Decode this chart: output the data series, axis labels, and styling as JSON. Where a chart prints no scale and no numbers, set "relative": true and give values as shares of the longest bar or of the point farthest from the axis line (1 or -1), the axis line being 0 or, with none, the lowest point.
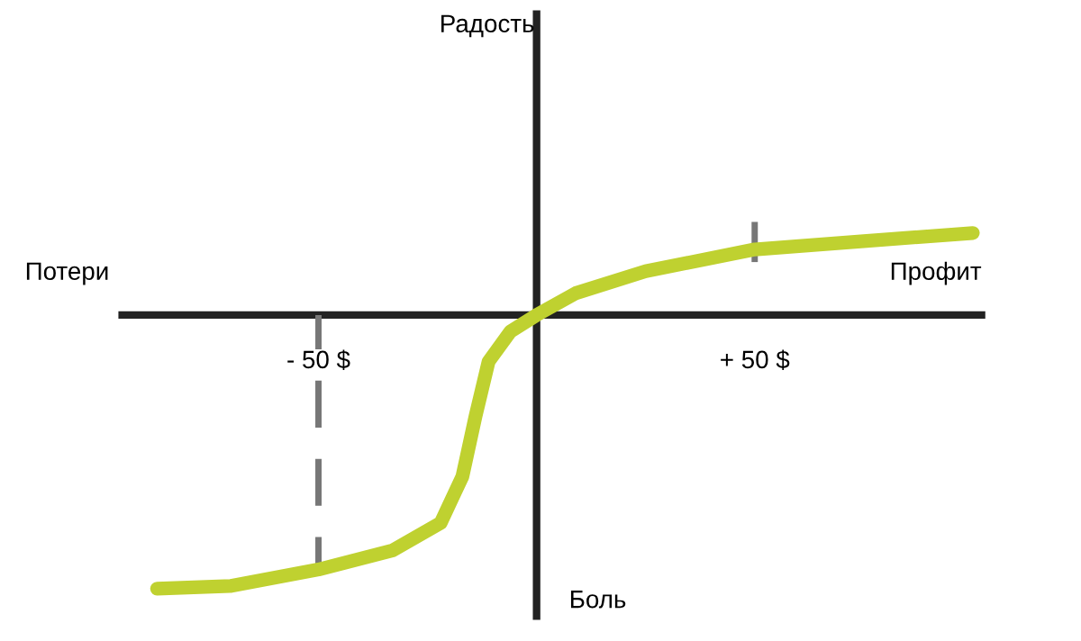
{
  "chart_data": {
    "type": "line",
    "relative": true,
    "xlabel": "Профит",
    "annotations": [
      "Потери",
      "Боль",
      "Радость"
    ],
    "xlim": [
      -95,
      102
    ],
    "xticks": [
      {
        "value": -50,
        "label": "- 50 $"
      },
      {
        "value": 50,
        "label": "+ 50 $"
      }
    ],
    "grid": false,
    "legend": false,
    "series": [
      {
        "color": "#bfd130",
        "line_style": "solid",
        "x": [
          -87,
          -70,
          -50,
          -33,
          -22,
          -17,
          -14,
          -11,
          -6,
          0,
          9,
          25,
          50,
          75,
          100
        ],
        "values": [
          -1,
          -0.99,
          -0.93,
          -0.86,
          -0.76,
          -0.59,
          -0.37,
          -0.17,
          -0.06,
          0,
          0.08,
          0.16,
          0.24,
          0.27,
          0.3
        ]
      },
      {
        "color": "#777777",
        "line_style": "dashed",
        "x": [
          -50,
          -50
        ],
        "values": [
          0,
          -0.93
        ]
      },
      {
        "color": "#777777",
        "line_style": "dashed",
        "x": [
          50,
          50
        ],
        "values": [
          0.19,
          0.34
        ]
      }
    ]
  }
}
